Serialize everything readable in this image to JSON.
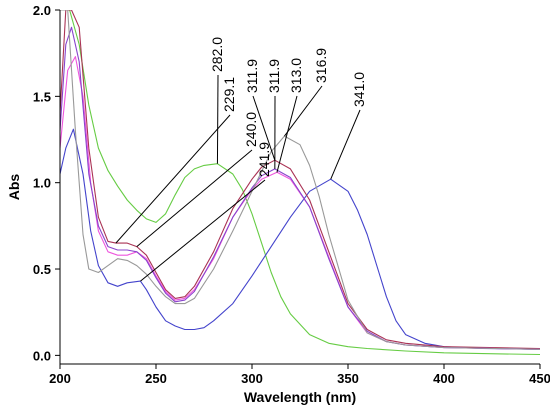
{
  "chart_data": {
    "type": "line",
    "title": "",
    "xlabel": "Wavelength (nm)",
    "ylabel": "Abs",
    "xlim": [
      200,
      450
    ],
    "ylim": [
      -0.05,
      2.0
    ],
    "x_ticks": [
      200,
      250,
      300,
      350,
      400,
      450
    ],
    "y_ticks": [
      0.0,
      0.5,
      1.0,
      1.5,
      2.0
    ],
    "x_tick_labels": [
      "200",
      "250",
      "300",
      "350",
      "400",
      "450"
    ],
    "y_tick_labels": [
      "0.0",
      "0.5",
      "1.0",
      "1.5",
      "2.0"
    ],
    "grid": false,
    "legend": "none",
    "series": [
      {
        "color": "#66cc44",
        "x": [
          200,
          205,
          210,
          215,
          220,
          225,
          230,
          235,
          240,
          245,
          250,
          255,
          260,
          265,
          270,
          275,
          282,
          290,
          295,
          300,
          305,
          310,
          315,
          320,
          330,
          340,
          350,
          360,
          380,
          400,
          420,
          450
        ],
        "y": [
          2.0,
          2.0,
          1.8,
          1.45,
          1.2,
          1.07,
          0.98,
          0.9,
          0.84,
          0.79,
          0.77,
          0.82,
          0.93,
          1.03,
          1.08,
          1.1,
          1.11,
          1.05,
          0.96,
          0.82,
          0.65,
          0.48,
          0.34,
          0.24,
          0.12,
          0.07,
          0.05,
          0.04,
          0.025,
          0.015,
          0.01,
          0.005
        ]
      },
      {
        "color": "#4444cc",
        "x": [
          200,
          203,
          207,
          212,
          216,
          220,
          225,
          230,
          235,
          241.9,
          245,
          250,
          255,
          260,
          265,
          270,
          275,
          280,
          290,
          300,
          310,
          320,
          330,
          341,
          350,
          355,
          360,
          365,
          370,
          375,
          380,
          390,
          400,
          420,
          450
        ],
        "y": [
          1.05,
          1.2,
          1.31,
          1.05,
          0.72,
          0.52,
          0.42,
          0.4,
          0.42,
          0.43,
          0.38,
          0.28,
          0.2,
          0.17,
          0.15,
          0.15,
          0.16,
          0.2,
          0.3,
          0.46,
          0.63,
          0.8,
          0.95,
          1.02,
          0.95,
          0.84,
          0.7,
          0.52,
          0.34,
          0.2,
          0.12,
          0.07,
          0.05,
          0.04,
          0.035
        ]
      },
      {
        "color": "#aa3355",
        "x": [
          200,
          203,
          206,
          210,
          215,
          220,
          225,
          229.1,
          235,
          240,
          245,
          250,
          255,
          260,
          265,
          270,
          280,
          290,
          300,
          305,
          311.9,
          320,
          330,
          340,
          350,
          360,
          370,
          380,
          400,
          450
        ],
        "y": [
          1.4,
          2.0,
          2.0,
          1.9,
          1.2,
          0.8,
          0.66,
          0.65,
          0.65,
          0.63,
          0.58,
          0.48,
          0.38,
          0.33,
          0.34,
          0.4,
          0.6,
          0.85,
          1.02,
          1.09,
          1.13,
          1.08,
          0.9,
          0.6,
          0.3,
          0.15,
          0.09,
          0.07,
          0.05,
          0.04
        ]
      },
      {
        "color": "#ee55dd",
        "x": [
          200,
          204,
          208,
          212,
          216,
          220,
          225,
          230,
          235,
          240,
          245,
          250,
          255,
          260,
          265,
          270,
          280,
          290,
          300,
          305,
          313,
          320,
          330,
          340,
          350,
          360,
          370,
          380,
          400,
          450
        ],
        "y": [
          1.2,
          1.65,
          1.73,
          1.5,
          1.0,
          0.72,
          0.6,
          0.58,
          0.58,
          0.6,
          0.56,
          0.46,
          0.37,
          0.32,
          0.33,
          0.38,
          0.56,
          0.8,
          0.96,
          1.02,
          1.06,
          1.02,
          0.86,
          0.57,
          0.28,
          0.13,
          0.08,
          0.06,
          0.045,
          0.035
        ]
      },
      {
        "color": "#8844cc",
        "x": [
          200,
          203,
          206,
          210,
          215,
          220,
          225,
          230,
          235,
          240,
          245,
          250,
          255,
          260,
          265,
          270,
          280,
          290,
          300,
          305,
          311.9,
          320,
          330,
          340,
          350,
          360,
          370,
          380,
          400,
          450
        ],
        "y": [
          1.3,
          1.8,
          1.9,
          1.7,
          1.05,
          0.75,
          0.63,
          0.61,
          0.61,
          0.6,
          0.55,
          0.45,
          0.36,
          0.31,
          0.32,
          0.37,
          0.57,
          0.8,
          0.97,
          1.04,
          1.08,
          1.03,
          0.86,
          0.56,
          0.28,
          0.14,
          0.08,
          0.06,
          0.045,
          0.035
        ]
      },
      {
        "color": "#999999",
        "x": [
          200,
          204,
          208,
          212,
          215,
          220,
          225,
          230,
          235,
          240,
          245,
          250,
          255,
          260,
          265,
          270,
          280,
          290,
          300,
          310,
          316.9,
          325,
          330,
          335,
          340,
          350,
          360,
          370,
          380,
          400,
          450
        ],
        "y": [
          2.0,
          2.0,
          1.3,
          0.7,
          0.5,
          0.48,
          0.52,
          0.56,
          0.55,
          0.52,
          0.47,
          0.4,
          0.34,
          0.3,
          0.3,
          0.33,
          0.5,
          0.72,
          0.95,
          1.18,
          1.27,
          1.22,
          1.1,
          0.92,
          0.7,
          0.32,
          0.13,
          0.08,
          0.06,
          0.045,
          0.035
        ]
      }
    ],
    "annotations": [
      {
        "label": "229.1",
        "x": 229.1,
        "y": 0.65
      },
      {
        "label": "240.0",
        "x": 240.0,
        "y": 0.63
      },
      {
        "label": "241.9",
        "x": 241.9,
        "y": 0.43
      },
      {
        "label": "282.0",
        "x": 282.0,
        "y": 1.11
      },
      {
        "label": "311.9",
        "x": 311.9,
        "y": 1.13
      },
      {
        "label": "311.9",
        "x": 311.9,
        "y": 1.08
      },
      {
        "label": "313.0",
        "x": 313.0,
        "y": 1.06
      },
      {
        "label": "316.9",
        "x": 316.9,
        "y": 1.27
      },
      {
        "label": "341.0",
        "x": 341.0,
        "y": 1.02
      }
    ]
  }
}
